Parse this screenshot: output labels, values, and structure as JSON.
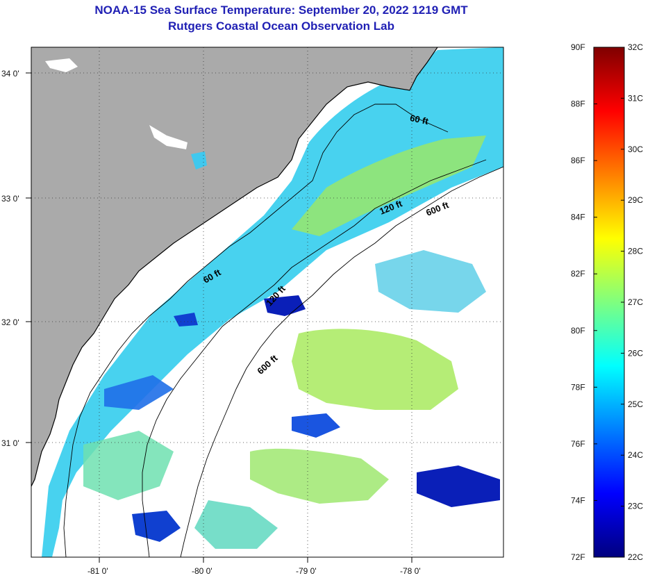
{
  "header": {
    "title": "NOAA-15 Sea Surface Temperature:  September 20, 2022 1219 GMT",
    "subtitle": "Rutgers Coastal Ocean Observation Lab"
  },
  "map": {
    "lon_labels": [
      "-81 0'",
      "-80 0'",
      "-79 0'",
      "-78 0'"
    ],
    "lat_labels": [
      "34 0'",
      "33 0'",
      "32 0'",
      "31 0'"
    ],
    "contours": [
      {
        "label": "60 ft",
        "depth_ft": 60
      },
      {
        "label": "120 ft",
        "depth_ft": 120
      },
      {
        "label": "600 ft",
        "depth_ft": 600
      },
      {
        "label": "60 ft",
        "depth_ft": 60
      },
      {
        "label": "120 ft",
        "depth_ft": 120
      },
      {
        "label": "600 ft",
        "depth_ft": 600
      }
    ],
    "colors": {
      "land": "#aaaaaa",
      "cloud_no_data": "#ffffff",
      "coastline": "#000000",
      "grid": "#333333"
    }
  },
  "colorbar": {
    "fahrenheit_labels": [
      "90F",
      "88F",
      "86F",
      "84F",
      "82F",
      "80F",
      "78F",
      "76F",
      "74F",
      "72F"
    ],
    "celsius_labels": [
      "32C",
      "31C",
      "30C",
      "29C",
      "28C",
      "27C",
      "26C",
      "25C",
      "24C",
      "23C",
      "22C"
    ],
    "range_f": [
      72,
      90
    ],
    "range_c": [
      22,
      32
    ],
    "color_stops": [
      "#00007f",
      "#0000ff",
      "#007fff",
      "#00ffff",
      "#7fff7f",
      "#ffff00",
      "#ff7f00",
      "#ff0000",
      "#7f0000"
    ]
  }
}
